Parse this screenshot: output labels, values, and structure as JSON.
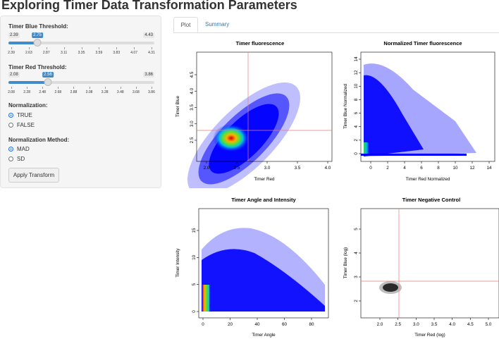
{
  "title": "Exploring Timer Data Transformation Parameters",
  "sidebar": {
    "blue": {
      "label": "Timer Blue Threshold:",
      "min": "2.39",
      "max": "4.43",
      "value": "2.75",
      "ticks": [
        "2.39",
        "2.63",
        "2.87",
        "3.11",
        "3.35",
        "3.59",
        "3.83",
        "4.07",
        "4.31"
      ]
    },
    "red": {
      "label": "Timer Red Threshold:",
      "min": "2.08",
      "max": "3.86",
      "value": "2.56",
      "ticks": [
        "2.08",
        "2.28",
        "2.48",
        "2.68",
        "2.88",
        "3.08",
        "3.28",
        "3.48",
        "3.68",
        "3.86"
      ]
    },
    "normalization": {
      "label": "Normalization:",
      "options": [
        "TRUE",
        "FALSE"
      ],
      "selected": "TRUE"
    },
    "method": {
      "label": "Normalization Method:",
      "options": [
        "MAD",
        "SD"
      ],
      "selected": "MAD"
    },
    "apply_button": "Apply Transform"
  },
  "tabs": [
    "Plot",
    "Summary"
  ],
  "active_tab": "Plot",
  "plots": {
    "p1": {
      "title": "Timer fluorescence",
      "xlabel": "Timer Red",
      "ylabel": "Timer Blue",
      "xticks": [
        "2.0",
        "2.5",
        "3.0",
        "3.5",
        "4.0"
      ],
      "yticks": [
        "2.5",
        "3.0",
        "3.5",
        "4.0",
        "4.5"
      ]
    },
    "p2": {
      "title": "Normalized Timer fluorescence",
      "xlabel": "Timer Red Normalized",
      "ylabel": "Timer Blue Normalized",
      "xticks": [
        "0",
        "2",
        "4",
        "6",
        "8",
        "10",
        "12",
        "14"
      ],
      "yticks": [
        "0",
        "2",
        "4",
        "6",
        "8",
        "10",
        "12",
        "14"
      ]
    },
    "p3": {
      "title": "Timer Angle and Intensity",
      "xlabel": "Timer Angle",
      "ylabel": "Timer Intensity",
      "xticks": [
        "0",
        "20",
        "40",
        "60",
        "80"
      ],
      "yticks": [
        "0",
        "5",
        "10",
        "15"
      ]
    },
    "p4": {
      "title": "Timer Negative Control",
      "xlabel": "Timer Red (log)",
      "ylabel": "Timer Blue (log)",
      "xticks": [
        "2.0",
        "2.5",
        "3.0",
        "3.5",
        "4.0",
        "4.5",
        "5.0"
      ],
      "yticks": [
        "2",
        "3",
        "4",
        "5"
      ]
    }
  },
  "colors": {
    "accent": "#428bca",
    "scatter": "#0000ff",
    "threshold_line": "#e87d7d",
    "link": "#337ab7"
  }
}
